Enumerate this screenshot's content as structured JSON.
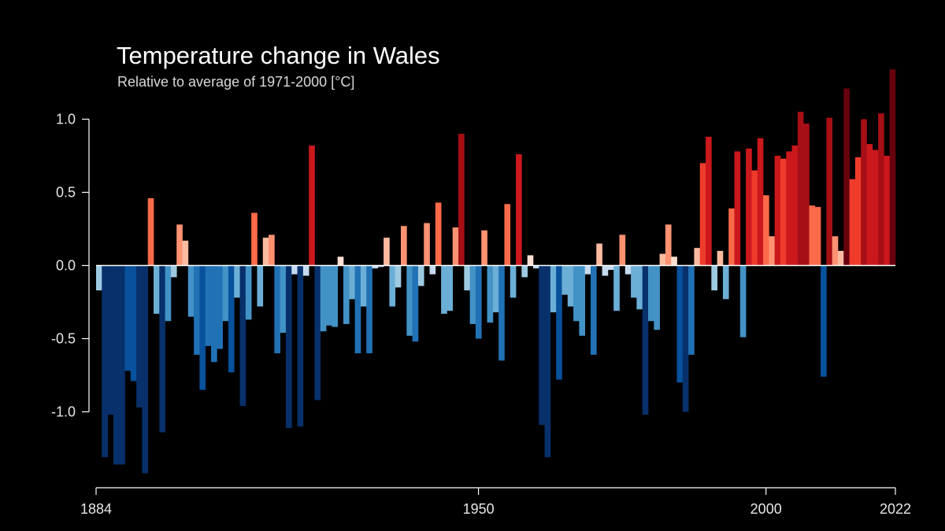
{
  "chart_data": {
    "type": "bar",
    "title": "Temperature change in Wales",
    "subtitle": "Relative to average of 1971-2000  [°C]",
    "xlabel": "",
    "ylabel": "",
    "x_start": 1884,
    "x_end": 2022,
    "x_ticks": [
      1884,
      1950,
      2000,
      2022
    ],
    "y_ticks": [
      {
        "value": 1.0,
        "label": "1.0"
      },
      {
        "value": 0.5,
        "label": "0.5"
      },
      {
        "value": 0.0,
        "label": "0.0"
      },
      {
        "value": -0.5,
        "label": "-0.5"
      },
      {
        "value": -1.0,
        "label": "-1.0"
      }
    ],
    "ylim": [
      -1.45,
      1.4
    ],
    "grid": false,
    "legend": "none",
    "colors": {
      "background": "#000000",
      "text": "#ffffff",
      "cold_extreme": "#08306b",
      "cold": "#2171b5",
      "cool": "#9ecae1",
      "neutral": "#f7f7f7",
      "warm": "#fcae91",
      "hot": "#de2d26",
      "hot_extreme": "#67000d"
    },
    "values": [
      -0.17,
      -1.31,
      -1.02,
      -1.36,
      -1.36,
      -0.72,
      -0.79,
      -0.97,
      -1.42,
      0.46,
      -0.33,
      -1.14,
      -0.38,
      -0.08,
      0.28,
      0.17,
      -0.35,
      -0.61,
      -0.85,
      -0.55,
      -0.66,
      -0.57,
      -0.38,
      -0.73,
      -0.22,
      -0.96,
      -0.37,
      0.36,
      -0.28,
      0.19,
      0.21,
      -0.6,
      -0.46,
      -1.11,
      -0.06,
      -1.1,
      -0.07,
      0.82,
      -0.92,
      -0.45,
      -0.41,
      -0.42,
      0.06,
      -0.4,
      -0.23,
      -0.6,
      -0.28,
      -0.6,
      -0.02,
      -0.01,
      0.19,
      -0.28,
      -0.15,
      0.27,
      -0.48,
      -0.52,
      -0.14,
      0.29,
      -0.06,
      0.43,
      -0.33,
      -0.31,
      0.26,
      0.9,
      -0.17,
      -0.4,
      -0.5,
      0.24,
      -0.39,
      -0.32,
      -0.65,
      0.42,
      -0.22,
      0.76,
      -0.08,
      0.07,
      -0.02,
      -1.09,
      -1.31,
      -0.32,
      -0.78,
      -0.2,
      -0.28,
      -0.38,
      -0.48,
      -0.06,
      -0.61,
      0.15,
      -0.07,
      -0.03,
      -0.31,
      0.21,
      -0.06,
      -0.22,
      -0.3,
      -1.02,
      -0.38,
      -0.44,
      0.08,
      0.28,
      0.06,
      -0.8,
      -1.0,
      -0.61,
      0.12,
      0.7,
      0.88,
      -0.17,
      0.1,
      -0.23,
      0.39,
      0.78,
      -0.49,
      0.8,
      0.65,
      0.87,
      0.48,
      0.2,
      0.75,
      0.73,
      0.78,
      0.82,
      1.05,
      0.97,
      0.41,
      0.4,
      -0.76,
      1.01,
      0.2,
      0.1,
      1.21,
      0.59,
      0.74,
      1.0,
      0.83,
      0.79,
      1.04,
      0.75,
      1.34
    ]
  }
}
